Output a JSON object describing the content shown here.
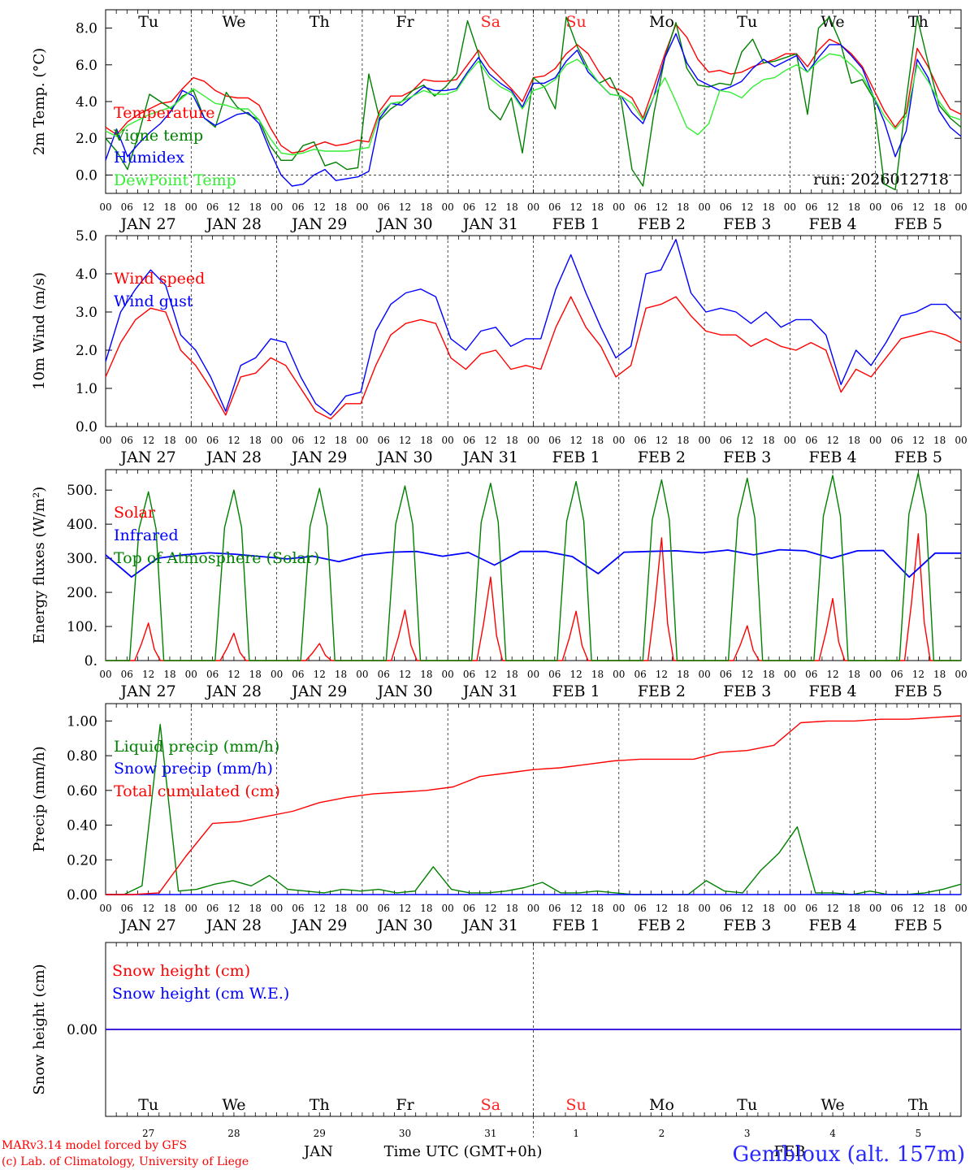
{
  "chart_data": {
    "type": "line",
    "run_label": "run: 2026012718",
    "station": "Gembloux (alt. 157m)",
    "credits": [
      "MARv3.14 model forced by GFS",
      "(c) Lab. of Climatology, University of Liege"
    ],
    "x_axis": {
      "start": "2026-01-27T00Z",
      "end": "2026-02-06T00Z",
      "step_hours": 6,
      "hour_labels": [
        "00",
        "06",
        "12",
        "18"
      ],
      "date_labels": [
        "JAN 27",
        "JAN 28",
        "JAN 29",
        "JAN 30",
        "JAN 31",
        "FEB  1",
        "FEB  2",
        "FEB  3",
        "FEB  4",
        "FEB  5"
      ],
      "weekdays": [
        "Tu",
        "We",
        "Th",
        "Fr",
        "Sa",
        "Su",
        "Mo",
        "Tu",
        "We",
        "Th"
      ],
      "weekend_color": "#ff2020",
      "weekday_color": "#000000",
      "day_numbers": [
        "27",
        "28",
        "29",
        "30",
        "31",
        "1",
        "2",
        "3",
        "4",
        "5"
      ],
      "month_left": "JAN",
      "month_right": "FEB",
      "xlabel": "Time UTC (GMT+0h)"
    },
    "panels": [
      {
        "id": "temperature",
        "ylabel": "2m Temp. (°C)",
        "ylim": [
          -1.0,
          9.0
        ],
        "yticks": [
          "0.0",
          "2.0",
          "4.0",
          "6.0",
          "8.0"
        ],
        "zero_line": true,
        "series": [
          {
            "name": "Temperature",
            "color": "#ff0000",
            "values": [
              2.6,
              2.2,
              2.9,
              3.3,
              3.6,
              3.9,
              4.0,
              4.7,
              5.3,
              5.1,
              4.6,
              4.3,
              4.2,
              4.2,
              3.8,
              2.6,
              1.6,
              1.2,
              1.3,
              1.6,
              1.8,
              1.6,
              1.7,
              1.9,
              1.8,
              3.5,
              4.3,
              4.3,
              4.6,
              5.2,
              5.1,
              5.1,
              5.2,
              6.0,
              6.8,
              5.9,
              5.3,
              4.7,
              4.0,
              5.3,
              5.4,
              5.8,
              6.6,
              7.1,
              6.6,
              5.6,
              4.8,
              4.6,
              4.2,
              3.1,
              4.8,
              6.6,
              8.2,
              7.5,
              6.3,
              5.6,
              5.7,
              5.5,
              5.6,
              5.9,
              6.1,
              6.3,
              6.6,
              6.6,
              5.9,
              6.8,
              7.4,
              7.1,
              6.6,
              5.9,
              4.7,
              3.5,
              2.6,
              3.4,
              6.9,
              5.9,
              4.6,
              3.6,
              3.3
            ]
          },
          {
            "name": "Vigne temp",
            "color": "#008000",
            "values": [
              2.0,
              1.3,
              0.3,
              2.2,
              4.4,
              4.0,
              3.6,
              4.3,
              4.6,
              3.1,
              2.6,
              4.5,
              3.7,
              3.3,
              3.0,
              1.6,
              0.8,
              0.8,
              1.6,
              1.8,
              0.5,
              0.7,
              0.3,
              0.4,
              5.5,
              3.0,
              3.6,
              4.0,
              4.6,
              4.9,
              4.3,
              4.8,
              5.5,
              8.4,
              6.6,
              3.6,
              3.0,
              4.2,
              1.2,
              5.3,
              4.8,
              3.6,
              8.6,
              7.0,
              5.8,
              5.0,
              5.3,
              4.1,
              0.3,
              -0.6,
              3.4,
              6.4,
              8.3,
              5.8,
              4.9,
              4.8,
              5.0,
              4.9,
              6.7,
              7.4,
              6.1,
              6.2,
              6.4,
              6.6,
              3.3,
              8.0,
              8.6,
              7.2,
              5.0,
              5.2,
              4.2,
              -0.5,
              -0.8,
              4.1,
              8.6,
              6.1,
              3.8,
              3.1,
              2.6
            ]
          },
          {
            "name": "Humidex",
            "color": "#0000ff",
            "values": [
              0.8,
              2.5,
              1.0,
              1.7,
              2.3,
              2.8,
              3.5,
              4.6,
              4.3,
              3.1,
              2.7,
              3.0,
              3.3,
              3.4,
              2.8,
              1.3,
              0.0,
              -0.6,
              -0.5,
              0.0,
              0.3,
              -0.3,
              -0.2,
              -0.1,
              0.2,
              3.1,
              3.9,
              3.8,
              4.3,
              4.8,
              4.6,
              4.6,
              4.7,
              5.6,
              6.4,
              5.5,
              5.0,
              4.6,
              3.7,
              5.0,
              5.0,
              5.3,
              6.2,
              6.8,
              5.6,
              5.0,
              4.4,
              4.3,
              3.4,
              2.8,
              4.3,
              6.4,
              7.7,
              6.1,
              5.2,
              4.9,
              4.6,
              4.8,
              5.1,
              5.8,
              6.3,
              5.9,
              6.2,
              6.5,
              5.6,
              6.4,
              7.1,
              7.1,
              6.5,
              5.8,
              4.3,
              2.9,
              1.0,
              2.4,
              6.3,
              5.3,
              3.5,
              2.6,
              2.1
            ]
          },
          {
            "name": "DewPoint Temp",
            "color": "#33ee33",
            "values": [
              2.4,
              2.1,
              2.7,
              3.0,
              3.3,
              3.5,
              3.7,
              4.2,
              4.7,
              4.3,
              3.9,
              3.8,
              3.6,
              3.6,
              3.0,
              2.0,
              1.2,
              1.1,
              1.2,
              1.4,
              1.3,
              1.3,
              1.3,
              1.4,
              1.5,
              3.3,
              3.9,
              4.0,
              4.3,
              4.6,
              4.4,
              4.4,
              4.6,
              5.5,
              6.2,
              5.3,
              4.8,
              4.5,
              3.6,
              4.6,
              4.8,
              5.2,
              6.0,
              6.3,
              5.8,
              5.0,
              4.4,
              4.3,
              3.9,
              3.0,
              4.3,
              5.3,
              4.0,
              2.6,
              2.2,
              2.8,
              4.6,
              4.5,
              4.2,
              4.8,
              5.2,
              5.3,
              5.7,
              6.0,
              5.6,
              6.2,
              6.6,
              6.5,
              6.0,
              5.4,
              4.3,
              3.2,
              2.5,
              3.2,
              6.0,
              5.1,
              4.0,
              3.2,
              3.0
            ]
          }
        ]
      },
      {
        "id": "wind",
        "ylabel": "10m Wind (m/s)",
        "ylim": [
          0.0,
          5.0
        ],
        "yticks": [
          "0.0",
          "1.0",
          "2.0",
          "3.0",
          "4.0",
          "5.0"
        ],
        "series": [
          {
            "name": "Wind speed",
            "color": "#ff0000",
            "values": [
              1.3,
              2.2,
              2.8,
              3.1,
              3.0,
              2.0,
              1.6,
              1.0,
              0.3,
              1.3,
              1.4,
              1.8,
              1.6,
              1.0,
              0.4,
              0.2,
              0.6,
              0.6,
              1.6,
              2.4,
              2.7,
              2.8,
              2.7,
              1.8,
              1.5,
              1.9,
              2.0,
              1.5,
              1.6,
              1.5,
              2.6,
              3.4,
              2.6,
              2.1,
              1.3,
              1.6,
              3.1,
              3.2,
              3.4,
              2.9,
              2.5,
              2.4,
              2.4,
              2.1,
              2.3,
              2.1,
              2.0,
              2.2,
              2.0,
              0.9,
              1.5,
              1.3,
              1.8,
              2.3,
              2.4,
              2.5,
              2.4,
              2.2
            ]
          },
          {
            "name": "Wind gust",
            "color": "#0000ff",
            "values": [
              1.7,
              3.0,
              3.6,
              4.1,
              3.7,
              2.4,
              2.0,
              1.3,
              0.4,
              1.6,
              1.8,
              2.3,
              2.2,
              1.3,
              0.6,
              0.3,
              0.8,
              0.9,
              2.5,
              3.2,
              3.5,
              3.6,
              3.4,
              2.3,
              2.0,
              2.5,
              2.6,
              2.1,
              2.3,
              2.3,
              3.6,
              4.5,
              3.5,
              2.6,
              1.8,
              2.1,
              4.0,
              4.1,
              4.9,
              3.5,
              3.0,
              3.1,
              3.0,
              2.7,
              3.0,
              2.6,
              2.8,
              2.8,
              2.4,
              1.1,
              2.0,
              1.6,
              2.2,
              2.9,
              3.0,
              3.2,
              3.2,
              2.8
            ]
          }
        ]
      },
      {
        "id": "energy",
        "ylabel": "Energy fluxes (W/m²)",
        "ylim": [
          0,
          560
        ],
        "yticks": [
          "0.",
          "100.",
          "200.",
          "300.",
          "400.",
          "500."
        ],
        "series": [
          {
            "name": "Solar",
            "color": "#ff0000",
            "peaks": [
              110,
              80,
              50,
              148,
              245,
              145,
              360,
              102,
              182,
              372
            ]
          },
          {
            "name": "Infrared",
            "color": "#0000ff",
            "values": [
              310,
              245,
              300,
              310,
              316,
              312,
              305,
              298,
              306,
              290,
              310,
              318,
              320,
              306,
              317,
              280,
              320,
              320,
              305,
              255,
              318,
              320,
              322,
              316,
              324,
              310,
              325,
              322,
              300,
              322,
              323,
              245,
              315,
              315
            ]
          },
          {
            "name": "Top of Atmosphere (Solar)",
            "color": "#008000",
            "peaks": [
              495,
              500,
              505,
              512,
              520,
              525,
              530,
              535,
              543,
              550
            ]
          }
        ]
      },
      {
        "id": "precip",
        "ylabel": "Precip (mm/h)",
        "ylim": [
          0.0,
          1.1
        ],
        "yticks": [
          "0.00",
          "0.20",
          "0.40",
          "0.60",
          "0.80",
          "1.00"
        ],
        "series": [
          {
            "name": "Liquid precip (mm/h)",
            "color": "#008000",
            "values": [
              0,
              0,
              0.05,
              0.98,
              0.02,
              0.03,
              0.06,
              0.08,
              0.05,
              0.11,
              0.03,
              0.02,
              0.01,
              0.03,
              0.02,
              0.03,
              0.01,
              0.02,
              0.16,
              0.03,
              0.01,
              0.01,
              0.02,
              0.04,
              0.07,
              0.01,
              0.01,
              0.02,
              0.01,
              0.0,
              0.0,
              0.0,
              0.0,
              0.08,
              0.02,
              0.01,
              0.14,
              0.24,
              0.39,
              0.01,
              0.01,
              0.0,
              0.02,
              0.0,
              0.0,
              0.01,
              0.03,
              0.06
            ]
          },
          {
            "name": "Snow precip (mm/h)",
            "color": "#0000ff",
            "values": [
              0,
              0
            ]
          },
          {
            "name": "Total cumulated (cm)",
            "color": "#ff0000",
            "values": [
              0.0,
              0.0,
              0.01,
              0.22,
              0.41,
              0.42,
              0.45,
              0.48,
              0.53,
              0.56,
              0.58,
              0.59,
              0.6,
              0.62,
              0.68,
              0.7,
              0.72,
              0.73,
              0.75,
              0.77,
              0.78,
              0.78,
              0.78,
              0.82,
              0.83,
              0.86,
              0.99,
              1.0,
              1.0,
              1.01,
              1.01,
              1.02,
              1.03
            ]
          }
        ]
      },
      {
        "id": "snow",
        "ylabel": "Snow height (cm)",
        "ylim": [
          -1.0,
          1.0
        ],
        "yticks": [
          "0.00"
        ],
        "series": [
          {
            "name": "Snow height (cm)",
            "color": "#ff0000",
            "values": [
              0,
              0
            ]
          },
          {
            "name": "Snow height (cm W.E.)",
            "color": "#0000ff",
            "values": [
              0,
              0
            ]
          }
        ]
      }
    ]
  }
}
